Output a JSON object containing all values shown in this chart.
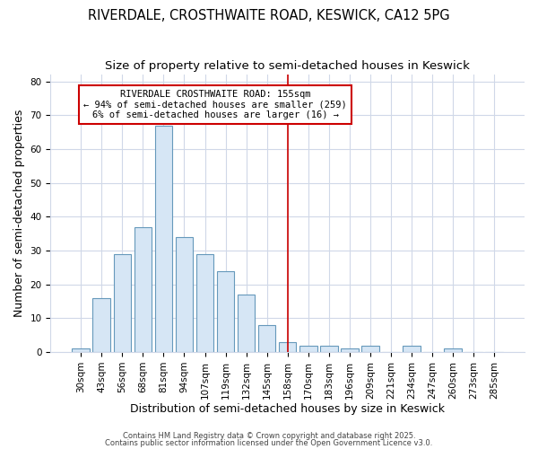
{
  "title": "RIVERDALE, CROSTHWAITE ROAD, KESWICK, CA12 5PG",
  "subtitle": "Size of property relative to semi-detached houses in Keswick",
  "xlabel": "Distribution of semi-detached houses by size in Keswick",
  "ylabel": "Number of semi-detached properties",
  "categories": [
    "30sqm",
    "43sqm",
    "56sqm",
    "68sqm",
    "81sqm",
    "94sqm",
    "107sqm",
    "119sqm",
    "132sqm",
    "145sqm",
    "158sqm",
    "170sqm",
    "183sqm",
    "196sqm",
    "209sqm",
    "221sqm",
    "234sqm",
    "247sqm",
    "260sqm",
    "273sqm",
    "285sqm"
  ],
  "values": [
    1,
    16,
    29,
    37,
    67,
    34,
    29,
    24,
    17,
    8,
    3,
    2,
    2,
    1,
    2,
    0,
    2,
    0,
    1,
    0,
    0
  ],
  "bar_color": "#d6e6f5",
  "bar_edge_color": "#6699bb",
  "vline_x_index": 10,
  "vline_color": "#cc0000",
  "annotation_title": "RIVERDALE CROSTHWAITE ROAD: 155sqm",
  "annotation_line1": "← 94% of semi-detached houses are smaller (259)",
  "annotation_line2": "6% of semi-detached houses are larger (16) →",
  "ylim": [
    0,
    82
  ],
  "yticks": [
    0,
    10,
    20,
    30,
    40,
    50,
    60,
    70,
    80
  ],
  "footer1": "Contains HM Land Registry data © Crown copyright and database right 2025.",
  "footer2": "Contains public sector information licensed under the Open Government Licence v3.0.",
  "bg_color": "#ffffff",
  "plot_bg_color": "#ffffff",
  "grid_color": "#d0d8e8",
  "title_fontsize": 10.5,
  "subtitle_fontsize": 9.5,
  "axis_label_fontsize": 9,
  "tick_fontsize": 7.5,
  "annotation_fontsize": 7.5
}
